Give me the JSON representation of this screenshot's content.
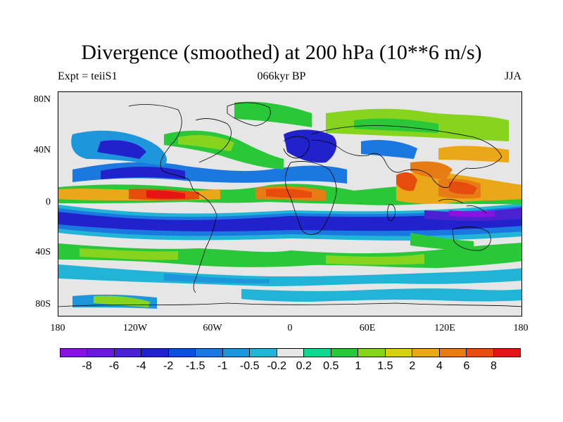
{
  "title": "Divergence (smoothed) at 200 hPa (10**6 m/s)",
  "subtitle_left": "Expt = teiiS1",
  "subtitle_center": "066kyr BP",
  "subtitle_right": "JJA",
  "y_ticks": [
    "80N",
    "40N",
    "0",
    "40S",
    "80S"
  ],
  "x_ticks": [
    "180",
    "120W",
    "60W",
    "0",
    "60E",
    "120E",
    "180"
  ],
  "colorbar": {
    "colors": [
      "#8a12e0",
      "#6a1ad8",
      "#4a22d2",
      "#2222cc",
      "#0a52dc",
      "#1a78e0",
      "#1e96dc",
      "#22b4d6",
      "#e6e6e6",
      "#10d890",
      "#2ac838",
      "#86d41e",
      "#d6d012",
      "#eaa818",
      "#e87c14",
      "#e64c0c",
      "#e61414"
    ],
    "labels": [
      "-8",
      "-6",
      "-4",
      "-2",
      "-1.5",
      "-1",
      "-0.5",
      "-0.2",
      "0.2",
      "0.5",
      "1",
      "1.5",
      "2",
      "4",
      "6",
      "8"
    ]
  }
}
